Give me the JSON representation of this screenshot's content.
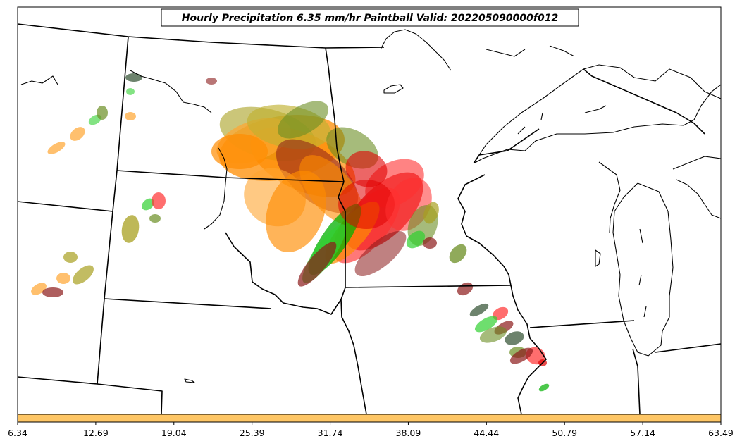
{
  "title": "Hourly Precipitation 6.35 mm/hr Paintball Valid: 202205090000f012",
  "colorbar": {
    "fill_color": "#fec665",
    "ticks": [
      "6.34",
      "12.69",
      "19.04",
      "25.39",
      "31.74",
      "38.09",
      "44.44",
      "50.79",
      "57.14",
      "63.49"
    ]
  },
  "member_colors": [
    "#ff8c00",
    "#e00000",
    "#ff3030",
    "#00b000",
    "#30d030",
    "#8b1a1a",
    "#6b8e23",
    "#a8a020",
    "#ffa530",
    "#2f4f2f",
    "#c0b030"
  ]
}
